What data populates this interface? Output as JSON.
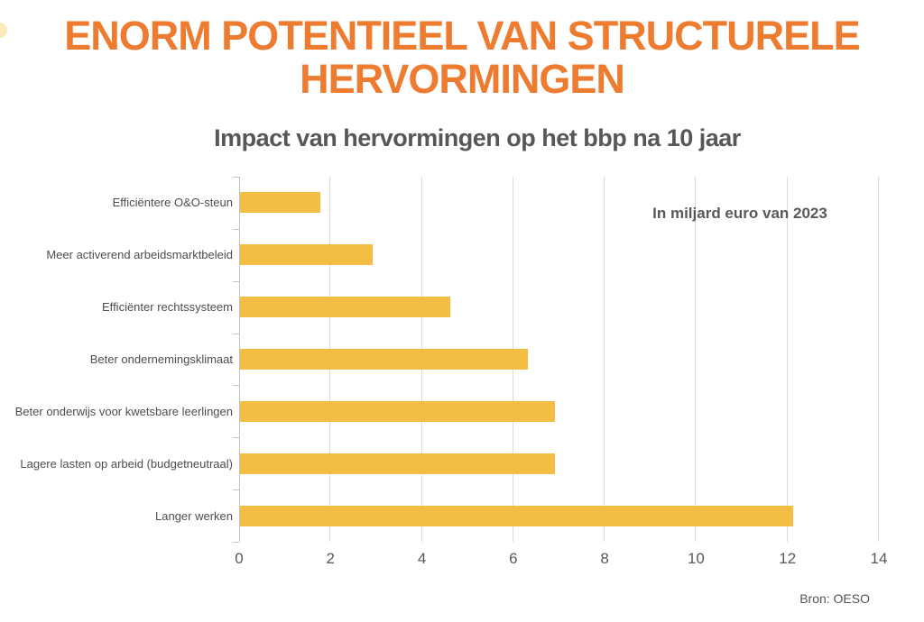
{
  "title": {
    "text": "ENORM POTENTIEEL VAN STRUCTURELE HERVORMINGEN",
    "color": "#ED7C30"
  },
  "subtitle": {
    "text": "Impact van hervormingen op het bbp na 10 jaar",
    "color": "#575757"
  },
  "annotation": {
    "text": "In miljard euro van 2023"
  },
  "source": {
    "text": "Bron: OESO"
  },
  "chart_data": {
    "type": "bar",
    "orientation": "horizontal",
    "title": "Impact van hervormingen op het bbp na 10 jaar",
    "categories": [
      "Efficiëntere O&O-steun",
      "Meer activerend arbeidsmarktbeleid",
      "Efficiënter rechtssysteem",
      "Beter ondernemingsklimaat",
      "Beter onderwijs voor kwetsbare leerlingen",
      "Lagere lasten op arbeid (budgetneutraal)",
      "Langer werken"
    ],
    "values": [
      1.75,
      2.9,
      4.6,
      6.3,
      6.9,
      6.9,
      12.1
    ],
    "xlabel": "",
    "ylabel": "",
    "xlim": [
      0,
      14
    ],
    "xticks": [
      0,
      2,
      4,
      6,
      8,
      10,
      12,
      14
    ],
    "grid": true,
    "legend": false,
    "bar_color": "#F3BC43",
    "unit_note": "In miljard euro van 2023"
  }
}
